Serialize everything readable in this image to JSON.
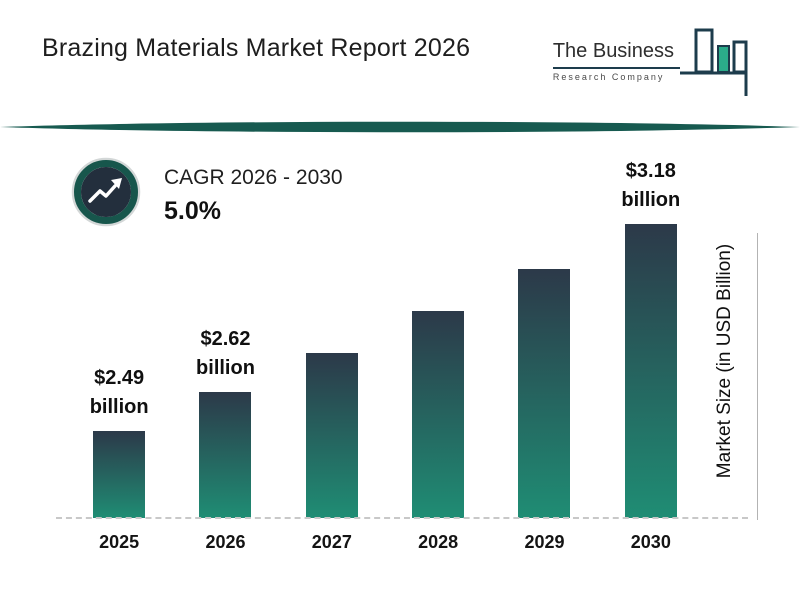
{
  "header": {
    "title": "Brazing Materials Market Report 2026",
    "logo": {
      "line1": "The Business",
      "line2": "Research Company"
    }
  },
  "cagr": {
    "label": "CAGR 2026 - 2030",
    "value": "5.0%"
  },
  "colors": {
    "accent_teal": "#175a50",
    "logo_outline": "#1d3c4c",
    "logo_green": "#2bab8a",
    "bar_top": "#2c3949",
    "bar_bottom": "#1f8d74",
    "icon_ring": "#17564c",
    "icon_inner": "#232f3d"
  },
  "chart_data": {
    "type": "bar",
    "title": "Brazing Materials Market Report 2026",
    "categories": [
      "2025",
      "2026",
      "2027",
      "2028",
      "2029",
      "2030"
    ],
    "values": [
      2.49,
      2.62,
      2.75,
      2.89,
      3.03,
      3.18
    ],
    "data_labels": [
      "$2.49 billion",
      "$2.62 billion",
      null,
      null,
      null,
      "$3.18 billion"
    ],
    "xlabel": "",
    "ylabel": "Market Size (in USD Billion)",
    "ylim": [
      2.2,
      3.3
    ],
    "grid": false,
    "legend": false
  }
}
